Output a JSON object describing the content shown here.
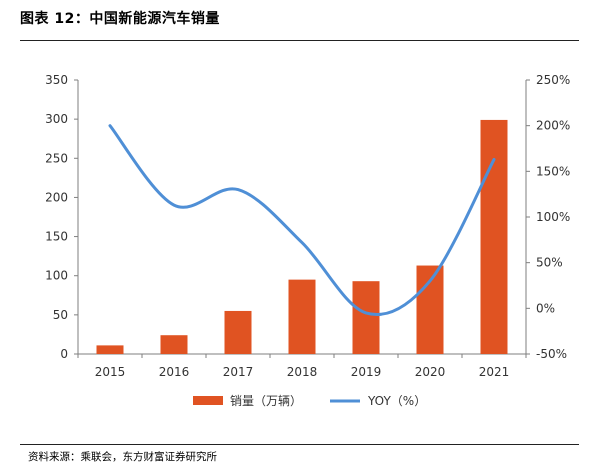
{
  "title": "图表 12：中国新能源汽车销量",
  "source": "资料来源：乘联会，东方财富证券研究所",
  "colors": {
    "bar": "#e05322",
    "line": "#4f8fd6",
    "axis": "#7f7f7f"
  },
  "chart_data": {
    "type": "bar+line",
    "categories": [
      "2015",
      "2016",
      "2017",
      "2018",
      "2019",
      "2020",
      "2021"
    ],
    "series": [
      {
        "name": "销量（万辆）",
        "type": "bar",
        "axis": "left",
        "values": [
          11,
          24,
          55,
          95,
          93,
          113,
          299
        ]
      },
      {
        "name": "YOY（%）",
        "type": "line",
        "axis": "right",
        "values": [
          200,
          113,
          130,
          72,
          -5,
          30,
          163
        ]
      }
    ],
    "y_left": {
      "min": 0,
      "max": 350,
      "ticks": [
        "0",
        "50",
        "100",
        "150",
        "200",
        "250",
        "300",
        "350"
      ]
    },
    "y_right": {
      "min": -50,
      "max": 250,
      "ticks": [
        "-50%",
        "0%",
        "50%",
        "100%",
        "150%",
        "200%",
        "250%"
      ]
    },
    "legend_position": "bottom",
    "grid": false
  }
}
